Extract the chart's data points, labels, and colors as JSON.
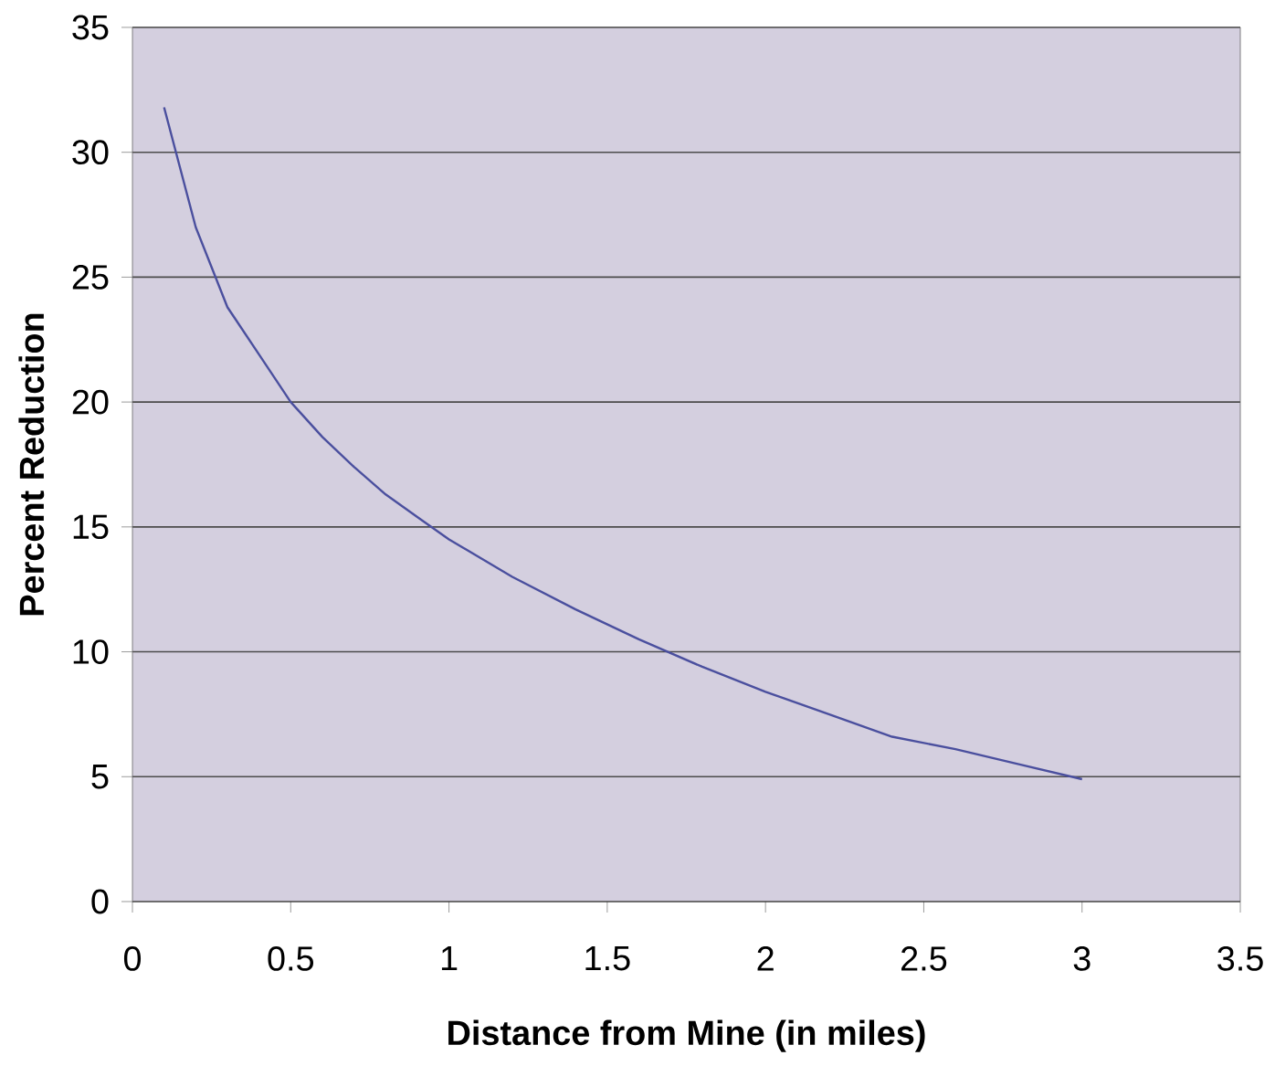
{
  "chart_data": {
    "type": "line",
    "xlabel": "Distance from Mine (in miles)",
    "ylabel": "Percent Reduction",
    "x": [
      0.1,
      0.2,
      0.3,
      0.4,
      0.5,
      0.6,
      0.7,
      0.8,
      0.9,
      1.0,
      1.2,
      1.4,
      1.6,
      1.8,
      2.0,
      2.2,
      2.4,
      2.6,
      2.8,
      3.0
    ],
    "series": [
      {
        "color": "#4a4f9e",
        "values": [
          31.8,
          27.0,
          23.8,
          21.9,
          20.0,
          18.6,
          17.4,
          16.3,
          15.4,
          14.5,
          13.0,
          11.7,
          10.5,
          9.4,
          8.4,
          7.5,
          6.6,
          6.1,
          5.5,
          4.9
        ]
      }
    ],
    "xlim": [
      0,
      3.5
    ],
    "ylim": [
      0,
      35
    ],
    "xticks": [
      0,
      0.5,
      1,
      1.5,
      2,
      2.5,
      3,
      3.5
    ],
    "yticks": [
      0,
      5,
      10,
      15,
      20,
      25,
      30,
      35
    ],
    "grid": "y",
    "marker": "none",
    "line_style": "solid"
  }
}
